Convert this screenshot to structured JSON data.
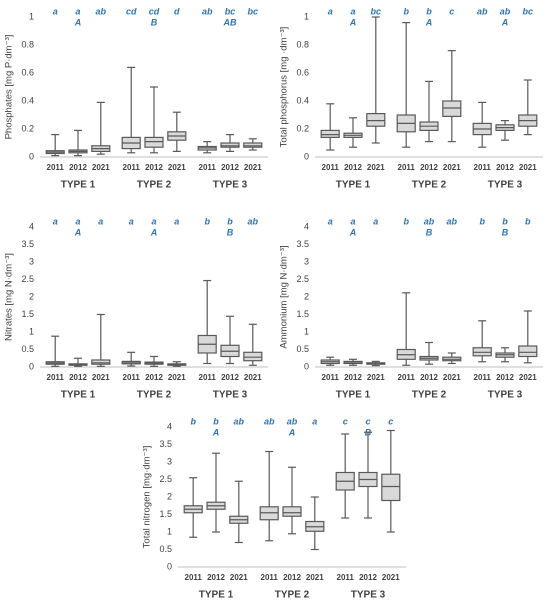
{
  "chart_data": [
    {
      "type": "box",
      "y_label": "Phosphates [mg P·dm⁻³]",
      "ylim": [
        0,
        1
      ],
      "yticks": [
        0,
        0.2,
        0.4,
        0.6,
        0.8,
        1
      ],
      "groups": [
        {
          "name": "TYPE 1",
          "letter": "A",
          "boxes": [
            {
              "label": "2011",
              "letter": "a",
              "min": 0.01,
              "q1": 0.025,
              "median": 0.035,
              "q3": 0.045,
              "max": 0.16
            },
            {
              "label": "2012",
              "letter": "a",
              "min": 0.01,
              "q1": 0.03,
              "median": 0.04,
              "q3": 0.05,
              "max": 0.19
            },
            {
              "label": "2021",
              "letter": "ab",
              "min": 0.02,
              "q1": 0.04,
              "median": 0.06,
              "q3": 0.08,
              "max": 0.39
            }
          ]
        },
        {
          "name": "TYPE 2",
          "letter": "B",
          "boxes": [
            {
              "label": "2011",
              "letter": "cd",
              "min": 0.03,
              "q1": 0.06,
              "median": 0.1,
              "q3": 0.14,
              "max": 0.64
            },
            {
              "label": "2012",
              "letter": "cd",
              "min": 0.03,
              "q1": 0.07,
              "median": 0.11,
              "q3": 0.14,
              "max": 0.5
            },
            {
              "label": "2021",
              "letter": "d",
              "min": 0.04,
              "q1": 0.12,
              "median": 0.15,
              "q3": 0.18,
              "max": 0.32
            }
          ]
        },
        {
          "name": "TYPE 3",
          "letter": "AB",
          "boxes": [
            {
              "label": "2011",
              "letter": "ab",
              "min": 0.03,
              "q1": 0.05,
              "median": 0.065,
              "q3": 0.075,
              "max": 0.11
            },
            {
              "label": "2012",
              "letter": "bc",
              "min": 0.04,
              "q1": 0.07,
              "median": 0.08,
              "q3": 0.1,
              "max": 0.16
            },
            {
              "label": "2021",
              "letter": "bc",
              "min": 0.05,
              "q1": 0.07,
              "median": 0.08,
              "q3": 0.1,
              "max": 0.13
            }
          ]
        }
      ]
    },
    {
      "type": "box",
      "y_label": "Total phosphorus [mg ·dm⁻³]",
      "ylim": [
        0,
        1
      ],
      "yticks": [
        0,
        0.2,
        0.4,
        0.6,
        0.8,
        1
      ],
      "groups": [
        {
          "name": "TYPE 1",
          "letter": "A",
          "boxes": [
            {
              "label": "2011",
              "letter": "a",
              "min": 0.05,
              "q1": 0.14,
              "median": 0.16,
              "q3": 0.19,
              "max": 0.38
            },
            {
              "label": "2012",
              "letter": "a",
              "min": 0.07,
              "q1": 0.14,
              "median": 0.155,
              "q3": 0.17,
              "max": 0.28
            },
            {
              "label": "2021",
              "letter": "bc",
              "min": 0.1,
              "q1": 0.22,
              "median": 0.26,
              "q3": 0.31,
              "max": 1.0
            }
          ]
        },
        {
          "name": "TYPE 2",
          "letter": "A",
          "boxes": [
            {
              "label": "2011",
              "letter": "b",
              "min": 0.07,
              "q1": 0.18,
              "median": 0.24,
              "q3": 0.3,
              "max": 0.96
            },
            {
              "label": "2012",
              "letter": "b",
              "min": 0.11,
              "q1": 0.19,
              "median": 0.22,
              "q3": 0.25,
              "max": 0.54
            },
            {
              "label": "2021",
              "letter": "c",
              "min": 0.11,
              "q1": 0.29,
              "median": 0.35,
              "q3": 0.4,
              "max": 0.76
            }
          ]
        },
        {
          "name": "TYPE 3",
          "letter": "A",
          "boxes": [
            {
              "label": "2011",
              "letter": "ab",
              "min": 0.07,
              "q1": 0.16,
              "median": 0.2,
              "q3": 0.24,
              "max": 0.39
            },
            {
              "label": "2012",
              "letter": "ab",
              "min": 0.12,
              "q1": 0.19,
              "median": 0.21,
              "q3": 0.23,
              "max": 0.26
            },
            {
              "label": "2021",
              "letter": "bc",
              "min": 0.16,
              "q1": 0.22,
              "median": 0.26,
              "q3": 0.3,
              "max": 0.55
            }
          ]
        }
      ]
    },
    {
      "type": "box",
      "y_label": "Nitrates [mg N·dm⁻³]",
      "ylim": [
        0,
        4
      ],
      "yticks": [
        0,
        0.5,
        1,
        1.5,
        2,
        2.5,
        3,
        3.5,
        4
      ],
      "groups": [
        {
          "name": "TYPE 1",
          "letter": "A",
          "boxes": [
            {
              "label": "2011",
              "letter": "a",
              "min": 0.02,
              "q1": 0.08,
              "median": 0.11,
              "q3": 0.15,
              "max": 0.88
            },
            {
              "label": "2012",
              "letter": "a",
              "min": 0.02,
              "q1": 0.05,
              "median": 0.07,
              "q3": 0.09,
              "max": 0.25
            },
            {
              "label": "2021",
              "letter": "a",
              "min": 0.02,
              "q1": 0.08,
              "median": 0.12,
              "q3": 0.2,
              "max": 1.5
            }
          ]
        },
        {
          "name": "TYPE 2",
          "letter": "A",
          "boxes": [
            {
              "label": "2011",
              "letter": "a",
              "min": 0.03,
              "q1": 0.09,
              "median": 0.12,
              "q3": 0.16,
              "max": 0.42
            },
            {
              "label": "2012",
              "letter": "a",
              "min": 0.02,
              "q1": 0.08,
              "median": 0.11,
              "q3": 0.14,
              "max": 0.3
            },
            {
              "label": "2021",
              "letter": "a",
              "min": 0.02,
              "q1": 0.05,
              "median": 0.07,
              "q3": 0.09,
              "max": 0.15
            }
          ]
        },
        {
          "name": "TYPE 3",
          "letter": "B",
          "boxes": [
            {
              "label": "2011",
              "letter": "b",
              "min": 0.1,
              "q1": 0.4,
              "median": 0.65,
              "q3": 0.9,
              "max": 2.47
            },
            {
              "label": "2012",
              "letter": "b",
              "min": 0.1,
              "q1": 0.3,
              "median": 0.45,
              "q3": 0.62,
              "max": 1.45
            },
            {
              "label": "2021",
              "letter": "ab",
              "min": 0.05,
              "q1": 0.18,
              "median": 0.28,
              "q3": 0.42,
              "max": 1.22
            }
          ]
        }
      ]
    },
    {
      "type": "box",
      "y_label": "Ammonium [mg N·dm⁻³]",
      "ylim": [
        0,
        4
      ],
      "yticks": [
        0,
        0.5,
        1,
        1.5,
        2,
        2.5,
        3,
        3.5,
        4
      ],
      "groups": [
        {
          "name": "TYPE 1",
          "letter": "A",
          "boxes": [
            {
              "label": "2011",
              "letter": "a",
              "min": 0.05,
              "q1": 0.1,
              "median": 0.15,
              "q3": 0.2,
              "max": 0.28
            },
            {
              "label": "2012",
              "letter": "a",
              "min": 0.05,
              "q1": 0.1,
              "median": 0.12,
              "q3": 0.16,
              "max": 0.22
            },
            {
              "label": "2021",
              "letter": "a",
              "min": 0.04,
              "q1": 0.08,
              "median": 0.1,
              "q3": 0.12,
              "max": 0.16
            }
          ]
        },
        {
          "name": "TYPE 2",
          "letter": "B",
          "boxes": [
            {
              "label": "2011",
              "letter": "b",
              "min": 0.05,
              "q1": 0.22,
              "median": 0.35,
              "q3": 0.5,
              "max": 2.12
            },
            {
              "label": "2012",
              "letter": "ab",
              "min": 0.08,
              "q1": 0.2,
              "median": 0.25,
              "q3": 0.3,
              "max": 0.7
            },
            {
              "label": "2021",
              "letter": "ab",
              "min": 0.1,
              "q1": 0.18,
              "median": 0.22,
              "q3": 0.28,
              "max": 0.4
            }
          ]
        },
        {
          "name": "TYPE 3",
          "letter": "B",
          "boxes": [
            {
              "label": "2011",
              "letter": "b",
              "min": 0.15,
              "q1": 0.32,
              "median": 0.42,
              "q3": 0.55,
              "max": 1.32
            },
            {
              "label": "2012",
              "letter": "b",
              "min": 0.15,
              "q1": 0.28,
              "median": 0.35,
              "q3": 0.4,
              "max": 0.55
            },
            {
              "label": "2021",
              "letter": "b",
              "min": 0.12,
              "q1": 0.3,
              "median": 0.42,
              "q3": 0.6,
              "max": 1.6
            }
          ]
        }
      ]
    },
    {
      "type": "box",
      "y_label": "Total nitrogen [mg·dm⁻³]",
      "ylim": [
        0,
        4
      ],
      "yticks": [
        0,
        0.5,
        1,
        1.5,
        2,
        2.5,
        3,
        3.5,
        4
      ],
      "groups": [
        {
          "name": "TYPE 1",
          "letter": "A",
          "boxes": [
            {
              "label": "2011",
              "letter": "b",
              "min": 0.85,
              "q1": 1.55,
              "median": 1.65,
              "q3": 1.75,
              "max": 2.55
            },
            {
              "label": "2012",
              "letter": "b",
              "min": 1.0,
              "q1": 1.65,
              "median": 1.75,
              "q3": 1.85,
              "max": 3.25
            },
            {
              "label": "2021",
              "letter": "ab",
              "min": 0.7,
              "q1": 1.25,
              "median": 1.35,
              "q3": 1.45,
              "max": 2.45
            }
          ]
        },
        {
          "name": "TYPE 2",
          "letter": "A",
          "boxes": [
            {
              "label": "2011",
              "letter": "ab",
              "min": 0.75,
              "q1": 1.35,
              "median": 1.55,
              "q3": 1.72,
              "max": 3.3
            },
            {
              "label": "2012",
              "letter": "ab",
              "min": 0.95,
              "q1": 1.45,
              "median": 1.55,
              "q3": 1.72,
              "max": 2.85
            },
            {
              "label": "2021",
              "letter": "a",
              "min": 0.5,
              "q1": 1.02,
              "median": 1.15,
              "q3": 1.3,
              "max": 2.0
            }
          ]
        },
        {
          "name": "TYPE 3",
          "letter": "B",
          "boxes": [
            {
              "label": "2011",
              "letter": "c",
              "min": 1.4,
              "q1": 2.2,
              "median": 2.45,
              "q3": 2.7,
              "max": 3.8
            },
            {
              "label": "2012",
              "letter": "c",
              "min": 1.4,
              "q1": 2.3,
              "median": 2.5,
              "q3": 2.7,
              "max": 3.85
            },
            {
              "label": "2021",
              "letter": "c",
              "min": 1.0,
              "q1": 1.9,
              "median": 2.3,
              "q3": 2.65,
              "max": 3.9
            }
          ]
        }
      ]
    }
  ]
}
